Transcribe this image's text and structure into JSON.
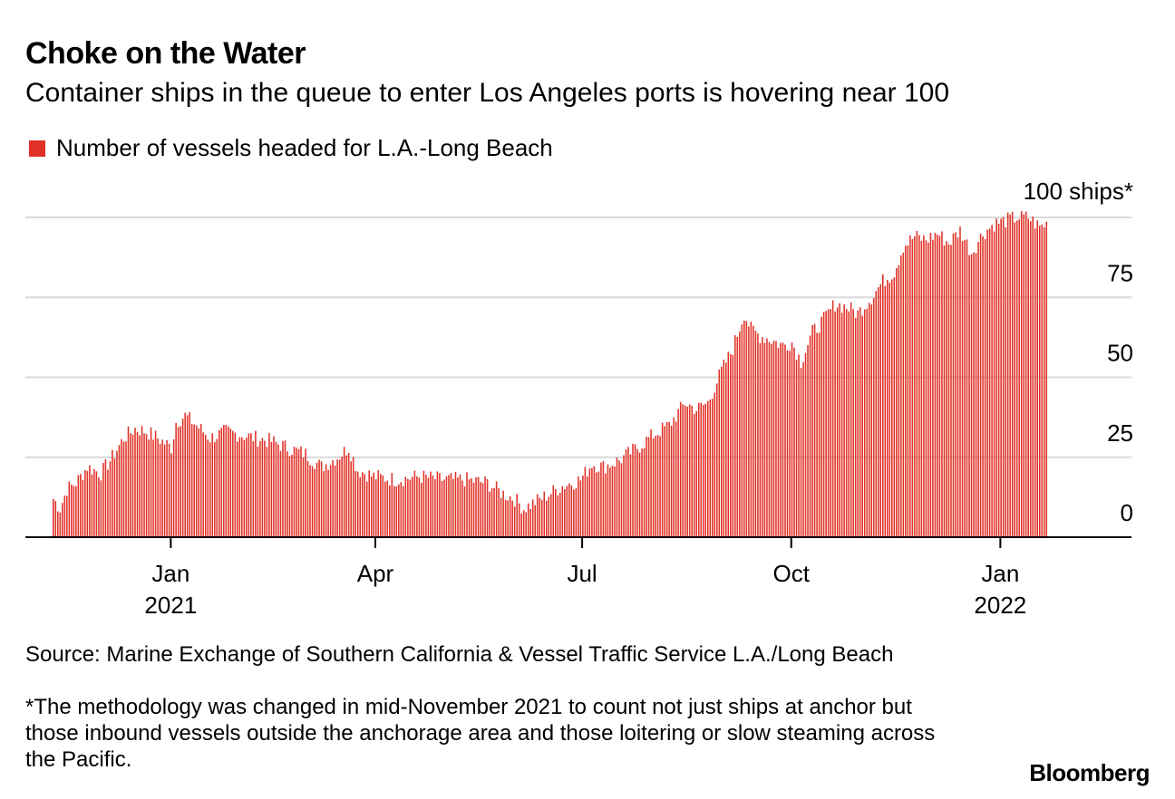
{
  "title": "Choke on the Water",
  "subtitle": "Container ships in the queue to enter Los Angeles ports is hovering near 100",
  "legend_label": "Number of vessels headed for L.A.-Long Beach",
  "source": "Source: Marine Exchange of Southern California & Vessel Traffic Service L.A./Long Beach",
  "note": "*The methodology was changed in mid-November 2021 to count not just ships at anchor but those inbound vessels outside the anchorage area and those loitering or slow steaming across the Pacific.",
  "brand": "Bloomberg",
  "colors": {
    "bar": "#e03127",
    "grid": "#d9d9d9",
    "axis": "#000000"
  },
  "chart_data": {
    "type": "bar",
    "series": [
      {
        "name": "Number of vessels headed for L.A.-Long Beach"
      }
    ],
    "x_range": [
      "2020-11-10",
      "2022-01-31"
    ],
    "ylim": [
      0,
      100
    ],
    "y_ticks": [
      {
        "value": 0,
        "label": "0"
      },
      {
        "value": 25,
        "label": "25"
      },
      {
        "value": 50,
        "label": "50"
      },
      {
        "value": 75,
        "label": "75"
      },
      {
        "value": 100,
        "label": "100 ships*"
      }
    ],
    "x_ticks": [
      {
        "date": "2021-01-01",
        "label": "Jan",
        "year": "2021"
      },
      {
        "date": "2021-04-01",
        "label": "Apr",
        "year": ""
      },
      {
        "date": "2021-07-01",
        "label": "Jul",
        "year": ""
      },
      {
        "date": "2021-10-01",
        "label": "Oct",
        "year": ""
      },
      {
        "date": "2022-01-01",
        "label": "Jan",
        "year": "2022"
      }
    ],
    "grid": true,
    "start_date": "2020-11-10",
    "keyframes": [
      [
        "2020-11-10",
        12
      ],
      [
        "2020-11-13",
        9
      ],
      [
        "2020-11-16",
        15
      ],
      [
        "2020-11-20",
        17
      ],
      [
        "2020-11-25",
        22
      ],
      [
        "2020-12-01",
        20
      ],
      [
        "2020-12-06",
        25
      ],
      [
        "2020-12-11",
        31
      ],
      [
        "2020-12-16",
        34
      ],
      [
        "2020-12-21",
        33
      ],
      [
        "2020-12-26",
        31
      ],
      [
        "2021-01-01",
        28
      ],
      [
        "2021-01-03",
        36
      ],
      [
        "2021-01-07",
        38
      ],
      [
        "2021-01-12",
        35
      ],
      [
        "2021-01-18",
        31
      ],
      [
        "2021-01-25",
        33
      ],
      [
        "2021-02-01",
        32
      ],
      [
        "2021-02-07",
        31
      ],
      [
        "2021-02-14",
        30
      ],
      [
        "2021-02-21",
        28
      ],
      [
        "2021-03-01",
        26
      ],
      [
        "2021-03-08",
        22
      ],
      [
        "2021-03-15",
        25
      ],
      [
        "2021-03-20",
        28
      ],
      [
        "2021-03-24",
        21
      ],
      [
        "2021-03-31",
        19
      ],
      [
        "2021-04-10",
        18
      ],
      [
        "2021-04-20",
        19
      ],
      [
        "2021-04-30",
        18
      ],
      [
        "2021-05-10",
        18
      ],
      [
        "2021-05-20",
        17
      ],
      [
        "2021-05-26",
        14
      ],
      [
        "2021-06-01",
        12
      ],
      [
        "2021-06-05",
        9
      ],
      [
        "2021-06-10",
        11
      ],
      [
        "2021-06-15",
        13
      ],
      [
        "2021-06-22",
        16
      ],
      [
        "2021-06-30",
        18
      ],
      [
        "2021-07-05",
        23
      ],
      [
        "2021-07-10",
        22
      ],
      [
        "2021-07-17",
        24
      ],
      [
        "2021-07-25",
        28
      ],
      [
        "2021-08-01",
        32
      ],
      [
        "2021-08-08",
        35
      ],
      [
        "2021-08-15",
        42
      ],
      [
        "2021-08-20",
        40
      ],
      [
        "2021-08-25",
        42
      ],
      [
        "2021-08-31",
        52
      ],
      [
        "2021-09-05",
        59
      ],
      [
        "2021-09-10",
        70
      ],
      [
        "2021-09-13",
        65
      ],
      [
        "2021-09-17",
        63
      ],
      [
        "2021-09-21",
        62
      ],
      [
        "2021-09-27",
        60
      ],
      [
        "2021-10-01",
        61
      ],
      [
        "2021-10-05",
        55
      ],
      [
        "2021-10-10",
        64
      ],
      [
        "2021-10-15",
        68
      ],
      [
        "2021-10-20",
        73
      ],
      [
        "2021-10-25",
        72
      ],
      [
        "2021-10-30",
        70
      ],
      [
        "2021-11-05",
        75
      ],
      [
        "2021-11-10",
        80
      ],
      [
        "2021-11-15",
        83
      ],
      [
        "2021-11-19",
        91
      ],
      [
        "2021-11-24",
        94
      ],
      [
        "2021-11-29",
        93
      ],
      [
        "2021-12-04",
        95
      ],
      [
        "2021-12-09",
        92
      ],
      [
        "2021-12-14",
        96
      ],
      [
        "2021-12-19",
        89
      ],
      [
        "2021-12-24",
        95
      ],
      [
        "2021-12-29",
        98
      ],
      [
        "2022-01-03",
        99
      ],
      [
        "2022-01-08",
        100
      ],
      [
        "2022-01-13",
        100
      ],
      [
        "2022-01-18",
        97
      ],
      [
        "2022-01-21",
        98
      ]
    ]
  }
}
